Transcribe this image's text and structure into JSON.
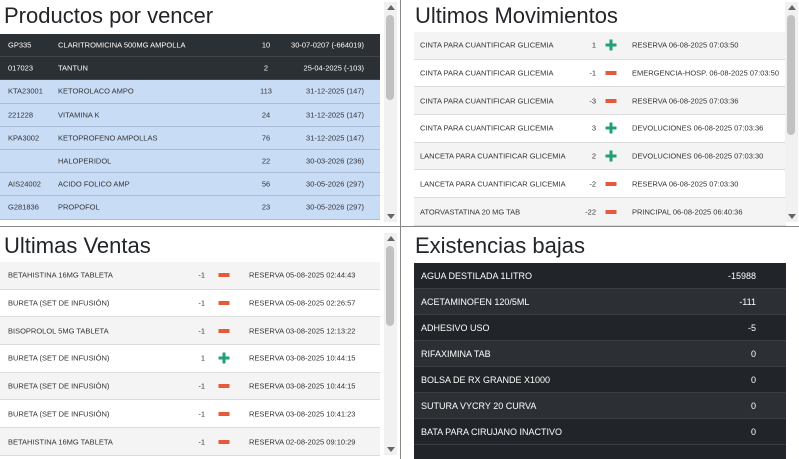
{
  "productos_por_vencer": {
    "title": "Productos por vencer",
    "rows": [
      [
        "GP335",
        "CLARITROMICINA 500MG AMPOLLA",
        "10",
        "30-07-0207 (-664019)"
      ],
      [
        "017023",
        "TANTUN",
        "2",
        "25-04-2025 (-103)"
      ],
      [
        "KTA23001",
        "KETOROLACO AMPO",
        "113",
        "31-12-2025 (147)"
      ],
      [
        "221228",
        "VITAMINA K",
        "24",
        "31-12-2025 (147)"
      ],
      [
        "KPA3002",
        "KETOPROFENO AMPOLLAS",
        "76",
        "31-12-2025 (147)"
      ],
      [
        "",
        "HALOPERIDOL",
        "22",
        "30-03-2026 (236)"
      ],
      [
        "AIS24002",
        "ACIDO FOLICO AMP",
        "56",
        "30-05-2026 (297)"
      ],
      [
        "G281836",
        "PROPOFOL",
        "23",
        "30-05-2026 (297)"
      ]
    ]
  },
  "ultimos_movimientos": {
    "title": "Ultimos Movimientos",
    "rows": [
      [
        "CINTA PARA CUANTIFICAR GLICEMIA",
        "1",
        "RESERVA 06-08-2025 07:03:50"
      ],
      [
        "CINTA PARA CUANTIFICAR GLICEMIA",
        "-1",
        "EMERGENCIA-HOSP. 06-08-2025 07:03:50"
      ],
      [
        "CINTA PARA CUANTIFICAR GLICEMIA",
        "-3",
        "RESERVA 06-08-2025 07:03:36"
      ],
      [
        "CINTA PARA CUANTIFICAR GLICEMIA",
        "3",
        "DEVOLUCIONES 06-08-2025 07:03:36"
      ],
      [
        "LANCETA PARA CUANTIFICAR GLICEMIA",
        "2",
        "DEVOLUCIONES 06-08-2025 07:03:30"
      ],
      [
        "LANCETA PARA CUANTIFICAR GLICEMIA",
        "-2",
        "RESERVA 06-08-2025 07:03:30"
      ],
      [
        "ATORVASTATINA 20 MG TAB",
        "-22",
        "PRINCIPAL 06-08-2025 06:40:36"
      ]
    ]
  },
  "ultimas_ventas": {
    "title": "Ultimas Ventas",
    "rows": [
      [
        "BETAHISTINA 16MG TABLETA",
        "-1",
        "RESERVA 05-08-2025 02:44:43"
      ],
      [
        "BURETA (SET DE INFUSIÓN)",
        "-1",
        "RESERVA 05-08-2025 02:26:57"
      ],
      [
        "BISOPROLOL 5MG TABLETA",
        "-1",
        "RESERVA 03-08-2025 12:13:22"
      ],
      [
        "BURETA (SET DE INFUSIÓN)",
        "1",
        "RESERVA 03-08-2025 10:44:15"
      ],
      [
        "BURETA (SET DE INFUSIÓN)",
        "-1",
        "RESERVA 03-08-2025 10:44:15"
      ],
      [
        "BURETA (SET DE INFUSIÓN)",
        "-1",
        "RESERVA 03-08-2025 10:41:23"
      ],
      [
        "BETAHISTINA 16MG TABLETA",
        "-1",
        "RESERVA 02-08-2025 09:10:29"
      ]
    ]
  },
  "existencias_bajas": {
    "title": "Existencias bajas",
    "rows": [
      [
        "AGUA DESTILADA 1LITRO",
        "-15988"
      ],
      [
        "ACETAMINOFEN 120/5ML",
        "-111"
      ],
      [
        "ADHESIVO USO",
        "-5"
      ],
      [
        "RIFAXIMINA TAB",
        "0"
      ],
      [
        "BOLSA DE RX GRANDE X1000",
        "0"
      ],
      [
        "SUTURA VYCRY 20 CURVA",
        "0"
      ],
      [
        "BATA PARA CIRUJANO INACTIVO",
        "0"
      ]
    ]
  }
}
